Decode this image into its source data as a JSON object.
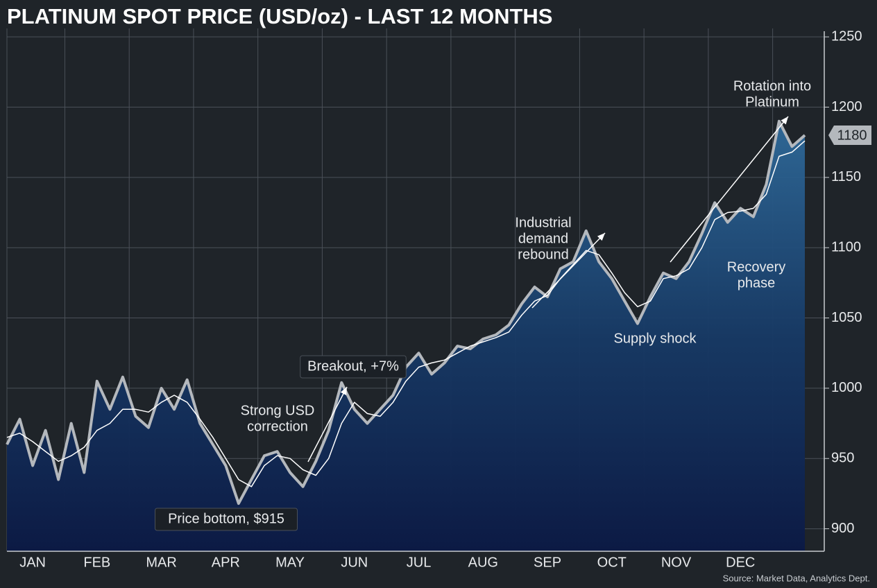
{
  "chart_data": {
    "type": "line",
    "title": "PLATINUM SPOT PRICE (USD/oz) - LAST 12 MONTHS",
    "source": "Source: Market Data, Analytics Dept.",
    "categories": [
      null,
      null,
      "JAN",
      null,
      null,
      null,
      null,
      "FEB",
      null,
      null,
      null,
      null,
      "MAR",
      null,
      null,
      null,
      null,
      "APR",
      null,
      null,
      null,
      null,
      "MAY",
      null,
      null,
      null,
      null,
      "JUN",
      null,
      null,
      null,
      null,
      "JUL",
      null,
      null,
      null,
      null,
      "AUG",
      null,
      null,
      null,
      null,
      "SEP",
      null,
      null,
      null,
      null,
      "OCT",
      null,
      null,
      null,
      null,
      "NOV",
      null,
      null,
      null,
      null,
      "DEC",
      null,
      null,
      null,
      null,
      null
    ],
    "series": [
      {
        "color": "#b4b8bd",
        "values": [
          960,
          978,
          945,
          970,
          935,
          975,
          940,
          1005,
          985,
          1008,
          980,
          972,
          1000,
          985,
          1006,
          975,
          960,
          945,
          918,
          935,
          952,
          955,
          940,
          930,
          948,
          970,
          1004,
          985,
          975,
          985,
          995,
          1015,
          1025,
          1010,
          1018,
          1030,
          1028,
          1035,
          1038,
          1045,
          1060,
          1072,
          1065,
          1085,
          1090,
          1112,
          1090,
          1078,
          1062,
          1046,
          1065,
          1082,
          1078,
          1090,
          1110,
          1132,
          1118,
          1128,
          1122,
          1145,
          1190,
          1172,
          1180
        ]
      },
      {
        "color": "#ffffff",
        "values": [
          965,
          968,
          962,
          955,
          948,
          952,
          958,
          970,
          975,
          985,
          985,
          983,
          990,
          995,
          990,
          978,
          965,
          950,
          935,
          930,
          945,
          952,
          950,
          942,
          938,
          950,
          975,
          990,
          982,
          980,
          990,
          1005,
          1015,
          1018,
          1020,
          1025,
          1030,
          1033,
          1036,
          1040,
          1052,
          1062,
          1066,
          1078,
          1088,
          1098,
          1095,
          1082,
          1068,
          1058,
          1062,
          1078,
          1080,
          1085,
          1100,
          1120,
          1125,
          1126,
          1128,
          1138,
          1165,
          1168,
          1176
        ]
      }
    ],
    "ylim": [
      884,
      1256
    ],
    "yticks": [
      900,
      950,
      1000,
      1050,
      1100,
      1150,
      1200,
      1250
    ],
    "grid": true,
    "annotations": [
      [
        "Price bottom, $915"
      ],
      [
        "Strong USD",
        "correction"
      ],
      [
        "Breakout, +7%"
      ],
      [
        "Industrial",
        "demand",
        "rebound"
      ],
      [
        "Supply shock"
      ],
      [
        "Recovery",
        "phase"
      ],
      [
        "Rotation into",
        "Platinum"
      ]
    ]
  }
}
